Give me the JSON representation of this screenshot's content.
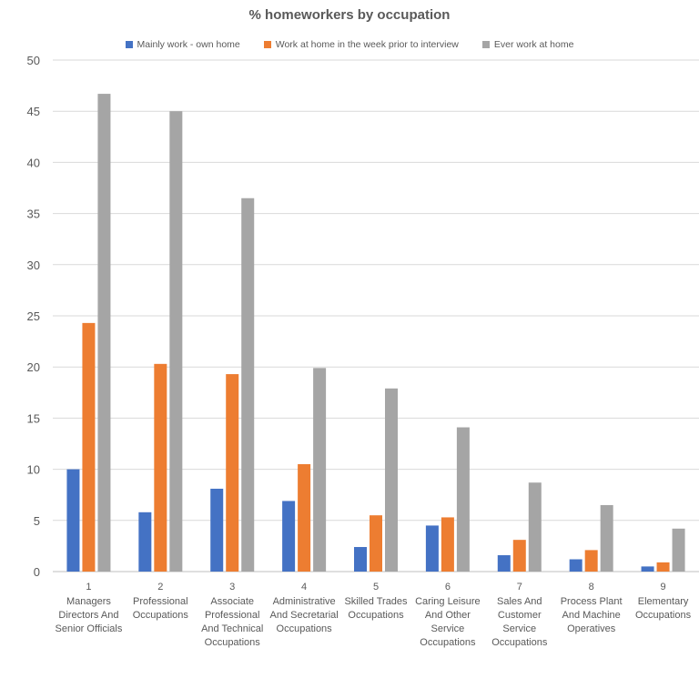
{
  "chart_data": {
    "type": "bar",
    "title": "% homeworkers by occupation",
    "xlabel": "",
    "ylabel": "",
    "ylim": [
      0,
      50
    ],
    "yticks": [
      0,
      5,
      10,
      15,
      20,
      25,
      30,
      35,
      40,
      45,
      50
    ],
    "grid": true,
    "legend_position": "top",
    "categories": [
      {
        "number": "1",
        "label": [
          "Managers",
          "Directors And",
          "Senior Officials"
        ]
      },
      {
        "number": "2",
        "label": [
          "Professional",
          "Occupations"
        ]
      },
      {
        "number": "3",
        "label": [
          "Associate",
          "Professional",
          "And Technical",
          "Occupations"
        ]
      },
      {
        "number": "4",
        "label": [
          "Administrative",
          "And Secretarial",
          "Occupations"
        ]
      },
      {
        "number": "5",
        "label": [
          "Skilled Trades",
          "Occupations"
        ]
      },
      {
        "number": "6",
        "label": [
          "Caring Leisure",
          "And Other",
          "Service",
          "Occupations"
        ]
      },
      {
        "number": "7",
        "label": [
          "Sales And",
          "Customer",
          "Service",
          "Occupations"
        ]
      },
      {
        "number": "8",
        "label": [
          "Process Plant",
          "And Machine",
          "Operatives"
        ]
      },
      {
        "number": "9",
        "label": [
          "Elementary",
          "Occupations"
        ]
      }
    ],
    "series": [
      {
        "name": "Mainly work - own home",
        "color": "#4472C4",
        "values": [
          10.0,
          5.8,
          8.1,
          6.9,
          2.4,
          4.5,
          1.6,
          1.2,
          0.5
        ]
      },
      {
        "name": "Work at home in the week prior to interview",
        "color": "#ED7D31",
        "values": [
          24.3,
          20.3,
          19.3,
          10.5,
          5.5,
          5.3,
          3.1,
          2.1,
          0.9
        ]
      },
      {
        "name": "Ever work at home",
        "color": "#A5A5A5",
        "values": [
          46.7,
          45.0,
          36.5,
          19.9,
          17.9,
          14.1,
          8.7,
          6.5,
          4.2
        ]
      }
    ]
  }
}
